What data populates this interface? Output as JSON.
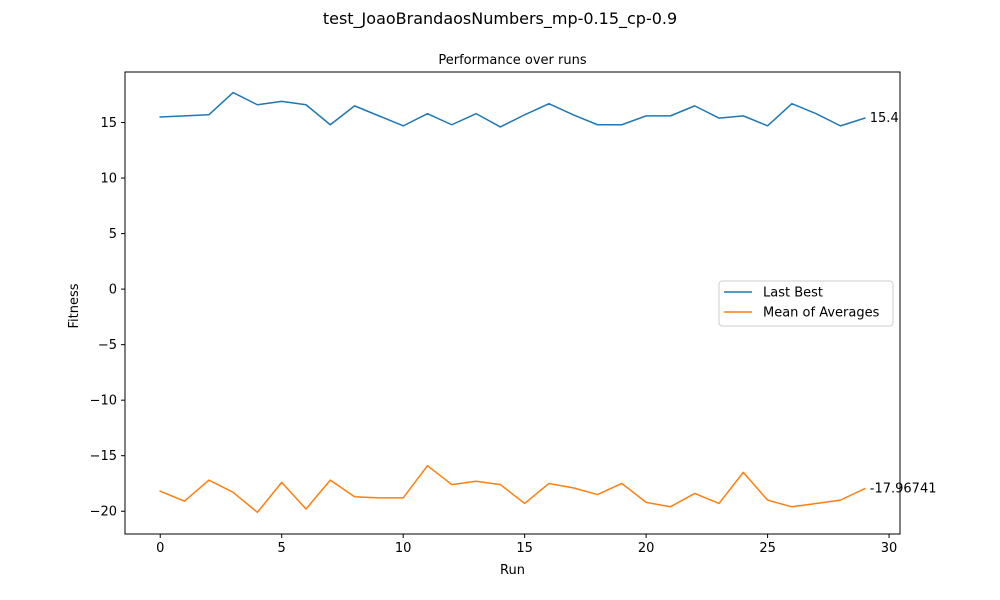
{
  "figure": {
    "suptitle": "test_JoaoBrandaosNumbers_mp-0.15_cp-0.9"
  },
  "chart_data": {
    "type": "line",
    "title": "Performance over runs",
    "xlabel": "Run",
    "ylabel": "Fitness",
    "xlim": [
      -1.45,
      30.45
    ],
    "ylim": [
      -22.05,
      19.55
    ],
    "xticks": [
      0,
      5,
      10,
      15,
      20,
      25,
      30
    ],
    "yticks": [
      15,
      10,
      5,
      0,
      -5,
      -10,
      -15,
      -20
    ],
    "ytick_labels": [
      "15",
      "10",
      "5",
      "0",
      "−5",
      "−10",
      "−15",
      "−20"
    ],
    "grid": false,
    "legend_position": "center-right",
    "x": [
      0,
      1,
      2,
      3,
      4,
      5,
      6,
      7,
      8,
      9,
      10,
      11,
      12,
      13,
      14,
      15,
      16,
      17,
      18,
      19,
      20,
      21,
      22,
      23,
      24,
      25,
      26,
      27,
      28,
      29
    ],
    "series": [
      {
        "name": "Last Best",
        "color": "#1f77b4",
        "values": [
          15.5,
          15.6,
          15.7,
          17.7,
          16.6,
          16.9,
          16.6,
          14.8,
          16.5,
          15.6,
          14.7,
          15.8,
          14.8,
          15.8,
          14.6,
          15.7,
          16.7,
          15.7,
          14.8,
          14.8,
          15.6,
          15.6,
          16.5,
          15.4,
          15.6,
          14.7,
          16.7,
          15.8,
          14.7,
          15.4
        ],
        "end_label": "15.4"
      },
      {
        "name": "Mean of Averages",
        "color": "#ff7f0e",
        "values": [
          -18.2,
          -19.1,
          -17.2,
          -18.3,
          -20.1,
          -17.4,
          -19.8,
          -17.2,
          -18.7,
          -18.8,
          -18.8,
          -15.9,
          -17.6,
          -17.3,
          -17.6,
          -19.3,
          -17.5,
          -17.9,
          -18.5,
          -17.5,
          -19.2,
          -19.6,
          -18.4,
          -19.3,
          -16.5,
          -19.0,
          -19.6,
          -19.3,
          -19.0,
          -17.96741
        ],
        "end_label": "-17.96741"
      }
    ]
  }
}
